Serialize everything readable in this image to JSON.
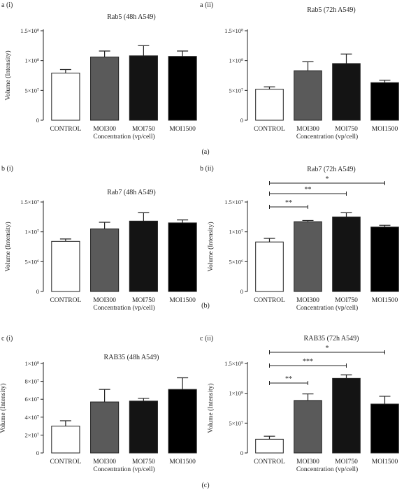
{
  "figure": {
    "row_labels": [
      "(a)",
      "(b)",
      "(c)"
    ],
    "bar_colors": [
      "#ffffff",
      "#5a5a5a",
      "#141414",
      "#000000"
    ],
    "bar_stroke": "#222222"
  },
  "chart_data": [
    {
      "type": "bar",
      "panel_label": "a (i)",
      "title": "Rab5 (48h A549)",
      "xlabel": "Concentration (vp/cell)",
      "ylabel": "Volume (Intensity)",
      "categories": [
        "CONTROL",
        "MOI300",
        "MOI750",
        "MOI1500"
      ],
      "values": [
        79000000,
        106000000,
        108000000,
        107000000
      ],
      "errors": [
        6000000,
        10000000,
        17000000,
        9000000
      ],
      "ylim": [
        0,
        150000000
      ],
      "yticks": [
        0,
        50000000,
        100000000,
        150000000
      ],
      "ytick_labels": [
        "0",
        "5×10⁷",
        "1×10⁸",
        "1.5×10⁸"
      ],
      "significance": []
    },
    {
      "type": "bar",
      "panel_label": "a (ii)",
      "title": "Rab5 (72h A549)",
      "xlabel": "Concentration (vp/cell)",
      "ylabel": "",
      "categories": [
        "CONTROL",
        "MOI300",
        "MOI750",
        "MOI1500"
      ],
      "values": [
        52000000,
        83000000,
        95000000,
        63000000
      ],
      "errors": [
        4000000,
        15000000,
        16000000,
        4000000
      ],
      "ylim": [
        0,
        150000000
      ],
      "yticks": [
        0,
        50000000,
        100000000,
        150000000
      ],
      "ytick_labels": [
        "0",
        "5×10⁷",
        "1×10⁸",
        "1.5×10⁸"
      ],
      "significance": []
    },
    {
      "type": "bar",
      "panel_label": "b (i)",
      "title": "Rab7 (48h A549)",
      "xlabel": "Concentration (vp/cell)",
      "ylabel": "Volume (Intensity)",
      "categories": [
        "CONTROL",
        "MOI300",
        "MOI750",
        "MOI1500"
      ],
      "values": [
        8400000,
        10500000,
        11800000,
        11500000
      ],
      "errors": [
        400000,
        1100000,
        1400000,
        500000
      ],
      "ylim": [
        0,
        15000000
      ],
      "yticks": [
        0,
        5000000,
        10000000,
        15000000
      ],
      "ytick_labels": [
        "0",
        "5×10⁶",
        "1×10⁷",
        "1.5×10⁷"
      ],
      "significance": []
    },
    {
      "type": "bar",
      "panel_label": "b (ii)",
      "title": "Rab7 (72h A549)",
      "xlabel": "Concentration (vp/cell)",
      "ylabel": "Volume (Intensity)",
      "categories": [
        "CONTROL",
        "MOI300",
        "MOI750",
        "MOI1500"
      ],
      "values": [
        8300000,
        11700000,
        12500000,
        10800000
      ],
      "errors": [
        600000,
        200000,
        700000,
        300000
      ],
      "ylim": [
        0,
        15000000
      ],
      "yticks": [
        0,
        5000000,
        10000000,
        15000000
      ],
      "ytick_labels": [
        "0",
        "5×10⁶",
        "1×10⁷",
        "1.5×10⁷"
      ],
      "significance": [
        {
          "from": 0,
          "to": 1,
          "label": "**"
        },
        {
          "from": 0,
          "to": 2,
          "label": "**"
        },
        {
          "from": 0,
          "to": 3,
          "label": "*"
        }
      ]
    },
    {
      "type": "bar",
      "panel_label": "c (i)",
      "title": "RAB35 (48h A549)",
      "xlabel": "Concentration (vp/cell)",
      "ylabel": "Volume (Intensity)",
      "categories": [
        "CONTROL",
        "MOI300",
        "MOI750",
        "MOI1500"
      ],
      "values": [
        30000000,
        57000000,
        58000000,
        71000000
      ],
      "errors": [
        6000000,
        14000000,
        3000000,
        13000000
      ],
      "ylim": [
        0,
        100000000
      ],
      "yticks": [
        0,
        20000000,
        40000000,
        60000000,
        80000000,
        100000000
      ],
      "ytick_labels": [
        "0",
        "2×10⁷",
        "4×10⁷",
        "6×10⁷",
        "8×10⁷",
        "1×10⁸"
      ],
      "significance": []
    },
    {
      "type": "bar",
      "panel_label": "c (ii)",
      "title": "RAB35 (72h A549)",
      "xlabel": "Concentration (vp/cell)",
      "ylabel": "Volume (Intensity)",
      "categories": [
        "CONTROL",
        "MOI300",
        "MOI750",
        "MOI1500"
      ],
      "values": [
        23000000,
        88000000,
        125000000,
        82000000
      ],
      "errors": [
        5000000,
        11000000,
        6000000,
        13000000
      ],
      "ylim": [
        0,
        150000000
      ],
      "yticks": [
        0,
        50000000,
        100000000,
        150000000
      ],
      "ytick_labels": [
        "0",
        "5×10⁷",
        "1×10⁸",
        "1.5×10⁸"
      ],
      "significance": [
        {
          "from": 0,
          "to": 1,
          "label": "**"
        },
        {
          "from": 0,
          "to": 2,
          "label": "***"
        },
        {
          "from": 0,
          "to": 3,
          "label": "*"
        }
      ]
    }
  ]
}
